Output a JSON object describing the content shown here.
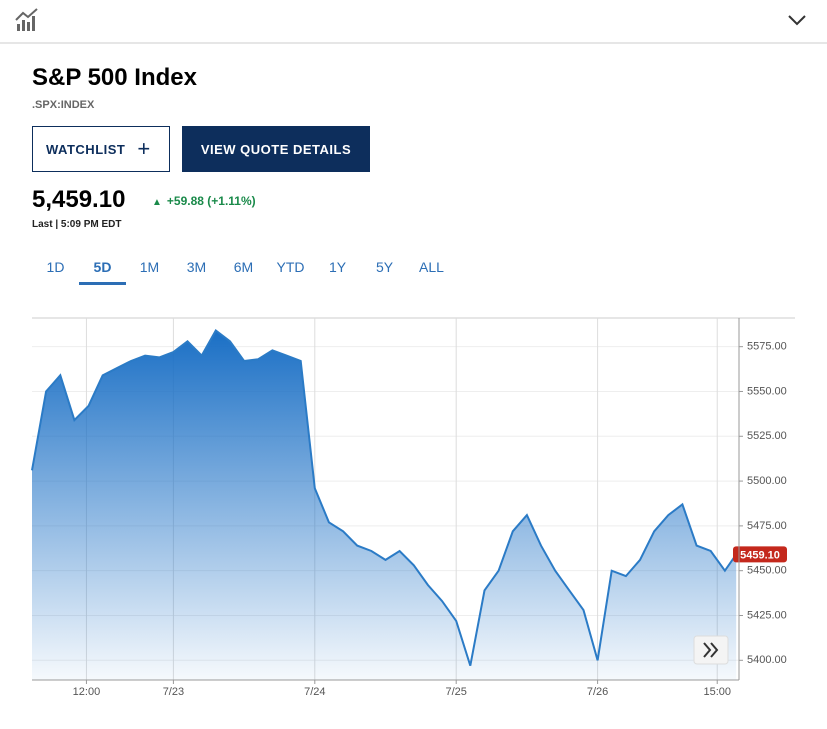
{
  "header": {
    "title": "S&P 500 Index",
    "symbol": ".SPX:INDEX"
  },
  "buttons": {
    "watchlist": "WATCHLIST",
    "quote": "VIEW QUOTE DETAILS"
  },
  "quote": {
    "price": "5,459.10",
    "change": "+59.88 (+1.11%)",
    "time": "Last | 5:09 PM EDT"
  },
  "tabs": {
    "items": [
      "1D",
      "5D",
      "1M",
      "3M",
      "6M",
      "YTD",
      "1Y",
      "5Y",
      "ALL"
    ],
    "active": 1
  },
  "chart_data": {
    "type": "area",
    "x": [
      0,
      0.1,
      0.2,
      0.3,
      0.4,
      0.5,
      0.6,
      0.7,
      0.8,
      0.9,
      1.0,
      1.1,
      1.2,
      1.3,
      1.4,
      1.5,
      1.6,
      1.7,
      1.8,
      1.9,
      2.0,
      2.1,
      2.2,
      2.3,
      2.4,
      2.5,
      2.6,
      2.7,
      2.8,
      2.9,
      3.0,
      3.1,
      3.2,
      3.3,
      3.4,
      3.5,
      3.6,
      3.7,
      3.8,
      3.9,
      4.0,
      4.1,
      4.2,
      4.3,
      4.4,
      4.5,
      4.6,
      4.7,
      4.8,
      4.9,
      4.98
    ],
    "series": [
      {
        "color": "#2b7bc6",
        "values": [
          5506,
          5550,
          5559,
          5534,
          5542,
          5559,
          5563,
          5567,
          5570,
          5569,
          5572,
          5578,
          5570,
          5584,
          5578,
          5567,
          5568,
          5573,
          5570,
          5567,
          5496,
          5477,
          5472,
          5464,
          5461,
          5456,
          5461,
          5453,
          5442,
          5433,
          5422,
          5397,
          5439,
          5450,
          5472,
          5481,
          5464,
          5450,
          5439,
          5428,
          5400,
          5450,
          5447,
          5456,
          5472,
          5481,
          5487,
          5464,
          5461,
          5450,
          5459.1
        ]
      }
    ],
    "last_value_label": "5459.10",
    "xlim": [
      0,
      5
    ],
    "xticks": [
      {
        "value": 0.385,
        "label": "12:00"
      },
      {
        "value": 1,
        "label": "7/23"
      },
      {
        "value": 2,
        "label": "7/24"
      },
      {
        "value": 3,
        "label": "7/25"
      },
      {
        "value": 4,
        "label": "7/26"
      },
      {
        "value": 4.846,
        "label": "15:00"
      }
    ],
    "ylim": [
      5389,
      5591
    ],
    "yticks": [
      {
        "value": 5400,
        "label": "5400.00"
      },
      {
        "value": 5425,
        "label": "5425.00"
      },
      {
        "value": 5450,
        "label": "5450.00"
      },
      {
        "value": 5475,
        "label": "5475.00"
      },
      {
        "value": 5500,
        "label": "5500.00"
      },
      {
        "value": 5525,
        "label": "5525.00"
      },
      {
        "value": 5550,
        "label": "5550.00"
      },
      {
        "value": 5575,
        "label": "5575.00"
      }
    ],
    "grid": true
  }
}
